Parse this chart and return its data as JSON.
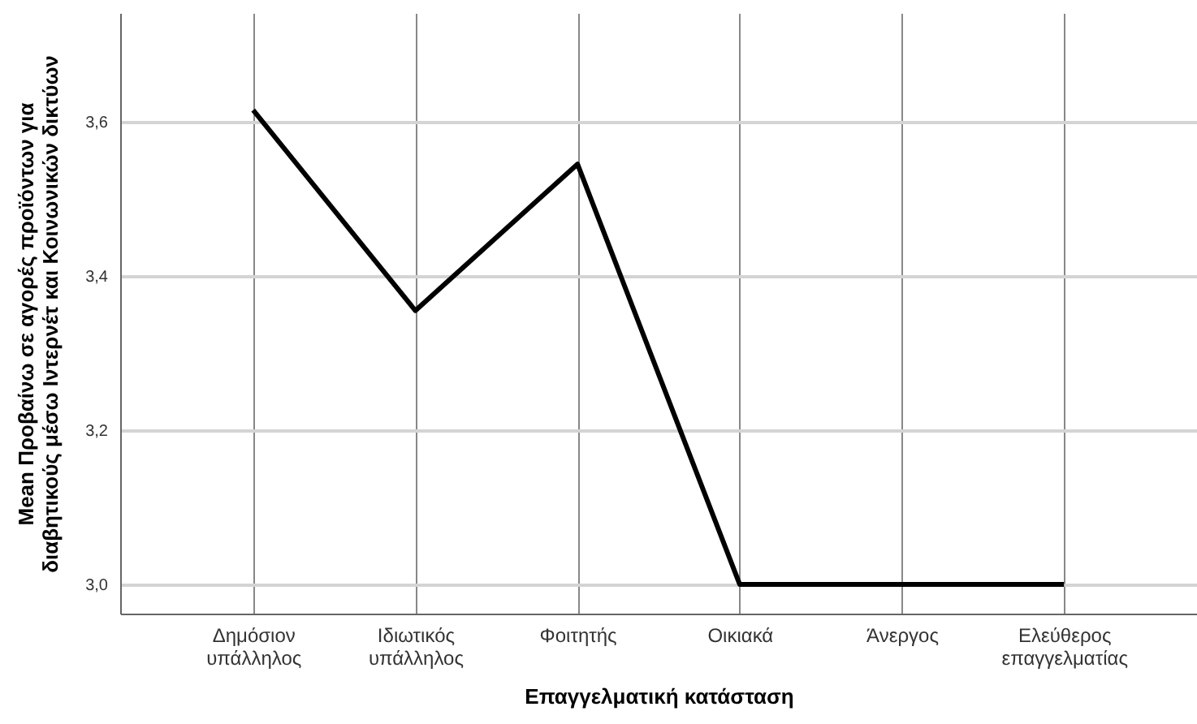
{
  "chart_data": {
    "type": "line",
    "xlabel": "Επαγγελματική κατάσταση",
    "ylabel": "Mean Προβαίνω σε αγορές προϊόντων για\nδιαβητικούς μέσω Ιντερνέτ και Κοινωνικών δικτύων",
    "categories": [
      "Δημόσιον υπάλληλος",
      "Ιδιωτικός υπάλληλος",
      "Φοιτητής",
      "Οικιακά",
      "Άνεργος",
      "Ελεύθερος επαγγελματίας"
    ],
    "series": [
      {
        "color": "#000000",
        "values": [
          3.615,
          3.355,
          3.545,
          3.0,
          3.0,
          3.0
        ]
      }
    ],
    "ylim": [
      2.962,
      3.741
    ],
    "yticks": [
      {
        "value": 3.0,
        "label": "3,0"
      },
      {
        "value": 3.2,
        "label": "3,2"
      },
      {
        "value": 3.4,
        "label": "3,4"
      },
      {
        "value": 3.6,
        "label": "3,6"
      }
    ],
    "grid": true,
    "marker": "none",
    "line_style": "solid"
  }
}
